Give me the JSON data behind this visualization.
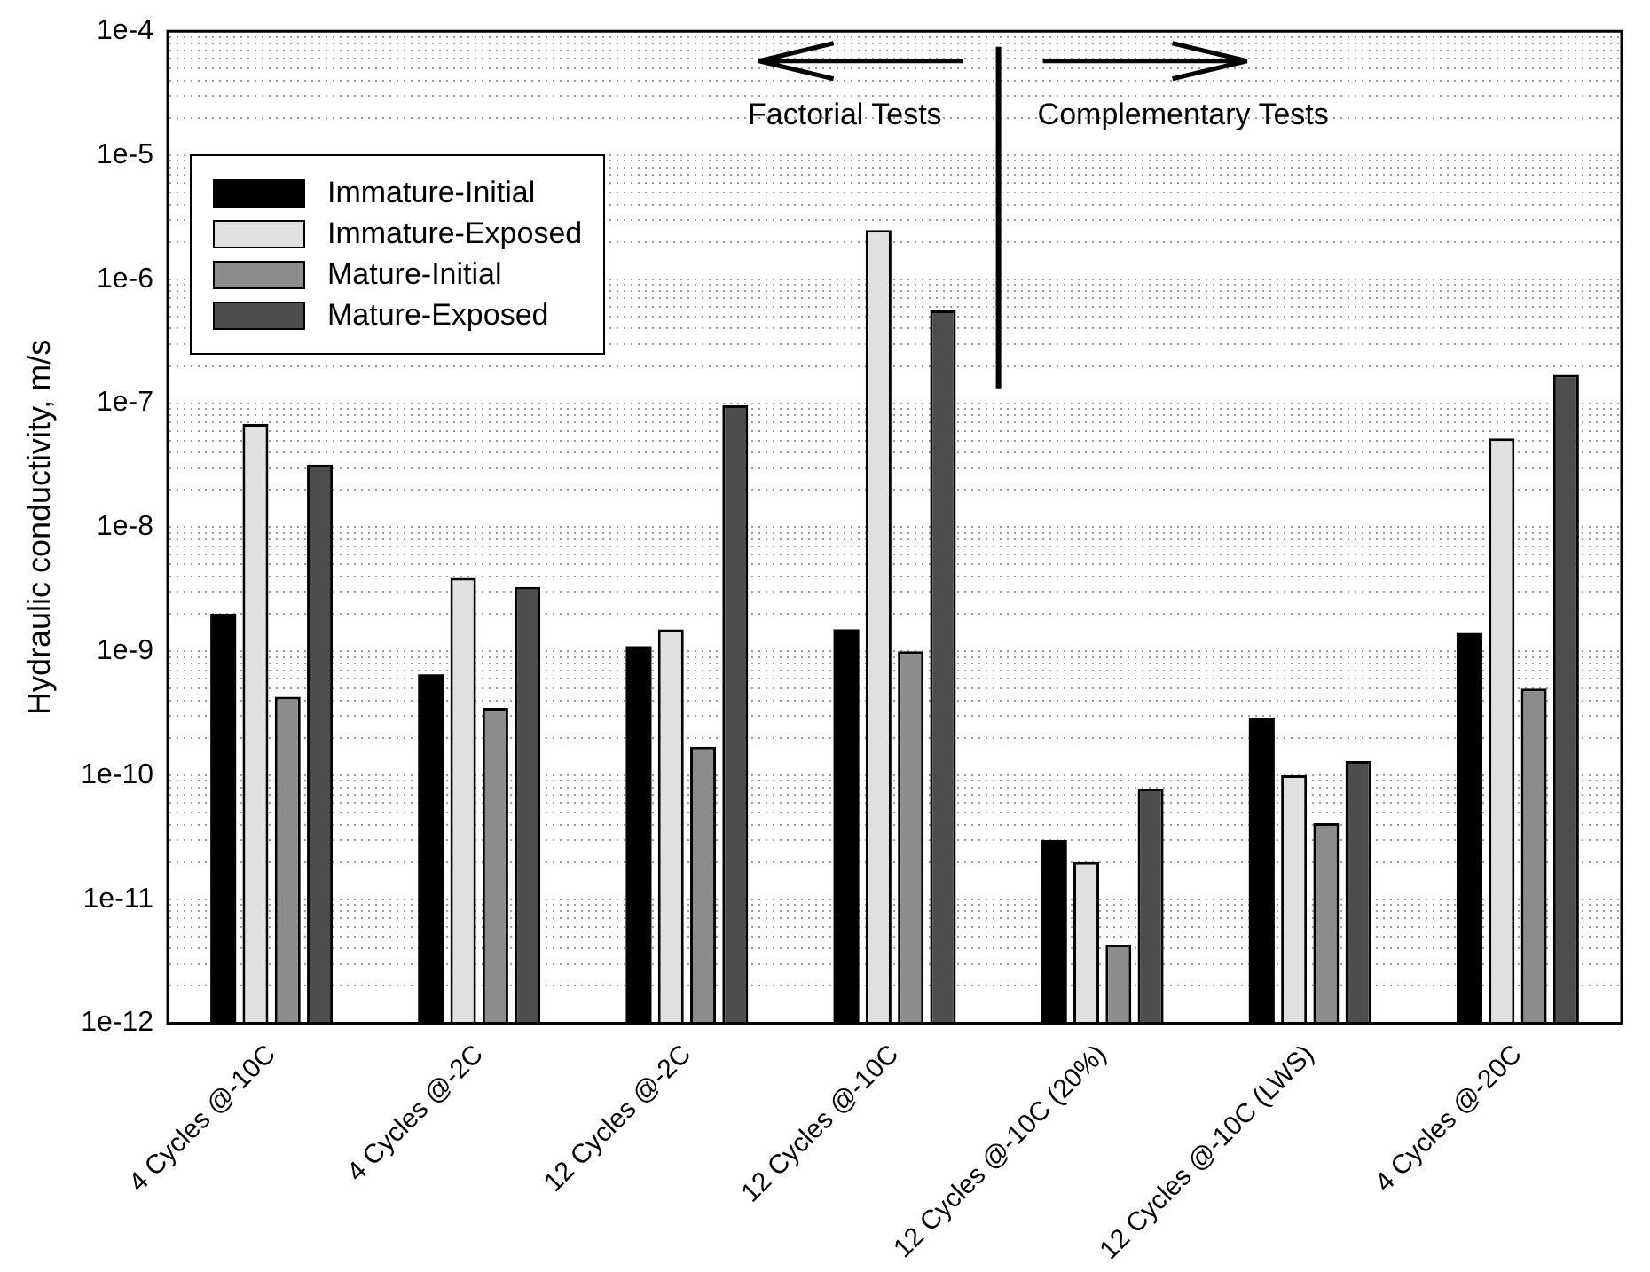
{
  "chart_data": {
    "type": "bar",
    "ylabel": "Hydraulic conductivity, m/s",
    "categories": [
      "4 Cycles @-10C",
      "4 Cycles @-2C",
      "12 Cycles @-2C",
      "12 Cycles @-10C",
      "12 Cycles @-10C (20%)",
      "12 Cycles @-10C (LWS)",
      "4 Cycles @-20C"
    ],
    "series": [
      {
        "name": "Immature-Initial",
        "color": "#000000",
        "values": [
          2e-09,
          6.5e-10,
          1.1e-09,
          1.5e-09,
          3e-11,
          2.9e-10,
          1.4e-09
        ]
      },
      {
        "name": "Immature-Exposed",
        "color": "#e0e0e0",
        "values": [
          6.8e-08,
          3.9e-09,
          1.5e-09,
          2.5e-06,
          2e-11,
          1e-10,
          5.2e-08
        ]
      },
      {
        "name": "Mature-Initial",
        "color": "#8c8c8c",
        "values": [
          4.3e-10,
          3.5e-10,
          1.7e-10,
          1e-09,
          4.3e-12,
          4.1e-11,
          5e-10
        ]
      },
      {
        "name": "Mature-Exposed",
        "color": "#4d4d4d",
        "values": [
          3.2e-08,
          3.3e-09,
          9.6e-08,
          5.6e-07,
          7.8e-11,
          1.3e-10,
          1.7e-07
        ]
      }
    ],
    "log": "y",
    "ylim": [
      1e-12,
      0.0001
    ],
    "yticks": [
      {
        "value": 1e-12,
        "label": "1e-12"
      },
      {
        "value": 2e-12,
        "label": null
      },
      {
        "value": 3e-12,
        "label": null
      },
      {
        "value": 4e-12,
        "label": null
      },
      {
        "value": 5e-12,
        "label": null
      },
      {
        "value": 6e-12,
        "label": null
      },
      {
        "value": 7e-12,
        "label": null
      },
      {
        "value": 8e-12,
        "label": null
      },
      {
        "value": 9e-12,
        "label": null
      },
      {
        "value": 1e-11,
        "label": "1e-11"
      },
      {
        "value": 2e-11,
        "label": null
      },
      {
        "value": 3e-11,
        "label": null
      },
      {
        "value": 4e-11,
        "label": null
      },
      {
        "value": 5e-11,
        "label": null
      },
      {
        "value": 6e-11,
        "label": null
      },
      {
        "value": 7e-11,
        "label": null
      },
      {
        "value": 8e-11,
        "label": null
      },
      {
        "value": 9e-11,
        "label": null
      },
      {
        "value": 1e-10,
        "label": "1e-10"
      },
      {
        "value": 2e-10,
        "label": null
      },
      {
        "value": 3e-10,
        "label": null
      },
      {
        "value": 4e-10,
        "label": null
      },
      {
        "value": 5e-10,
        "label": null
      },
      {
        "value": 6e-10,
        "label": null
      },
      {
        "value": 7e-10,
        "label": null
      },
      {
        "value": 8e-10,
        "label": null
      },
      {
        "value": 9e-10,
        "label": null
      },
      {
        "value": 1e-09,
        "label": "1e-9"
      },
      {
        "value": 2e-09,
        "label": null
      },
      {
        "value": 3e-09,
        "label": null
      },
      {
        "value": 4e-09,
        "label": null
      },
      {
        "value": 5e-09,
        "label": null
      },
      {
        "value": 6e-09,
        "label": null
      },
      {
        "value": 7e-09,
        "label": null
      },
      {
        "value": 8e-09,
        "label": null
      },
      {
        "value": 9e-09,
        "label": null
      },
      {
        "value": 1e-08,
        "label": "1e-8"
      },
      {
        "value": 2e-08,
        "label": null
      },
      {
        "value": 3e-08,
        "label": null
      },
      {
        "value": 4e-08,
        "label": null
      },
      {
        "value": 5e-08,
        "label": null
      },
      {
        "value": 6e-08,
        "label": null
      },
      {
        "value": 7e-08,
        "label": null
      },
      {
        "value": 8e-08,
        "label": null
      },
      {
        "value": 9e-08,
        "label": null
      },
      {
        "value": 1e-07,
        "label": "1e-7"
      },
      {
        "value": 2e-07,
        "label": null
      },
      {
        "value": 3e-07,
        "label": null
      },
      {
        "value": 4e-07,
        "label": null
      },
      {
        "value": 5e-07,
        "label": null
      },
      {
        "value": 6e-07,
        "label": null
      },
      {
        "value": 7e-07,
        "label": null
      },
      {
        "value": 8e-07,
        "label": null
      },
      {
        "value": 9e-07,
        "label": null
      },
      {
        "value": 1e-06,
        "label": "1e-6"
      },
      {
        "value": 2e-06,
        "label": null
      },
      {
        "value": 3e-06,
        "label": null
      },
      {
        "value": 4e-06,
        "label": null
      },
      {
        "value": 5e-06,
        "label": null
      },
      {
        "value": 6e-06,
        "label": null
      },
      {
        "value": 7e-06,
        "label": null
      },
      {
        "value": 8e-06,
        "label": null
      },
      {
        "value": 9e-06,
        "label": null
      },
      {
        "value": 1e-05,
        "label": "1e-5"
      },
      {
        "value": 2e-05,
        "label": null
      },
      {
        "value": 3e-05,
        "label": null
      },
      {
        "value": 4e-05,
        "label": null
      },
      {
        "value": 5e-05,
        "label": null
      },
      {
        "value": 6e-05,
        "label": null
      },
      {
        "value": 7e-05,
        "label": null
      },
      {
        "value": 8e-05,
        "label": null
      },
      {
        "value": 9e-05,
        "label": null
      },
      {
        "value": 0.0001,
        "label": "1e-4"
      }
    ],
    "grid": "y",
    "legend": "top left",
    "annotations": [
      "Factorial Tests",
      "Complementary Tests"
    ]
  }
}
